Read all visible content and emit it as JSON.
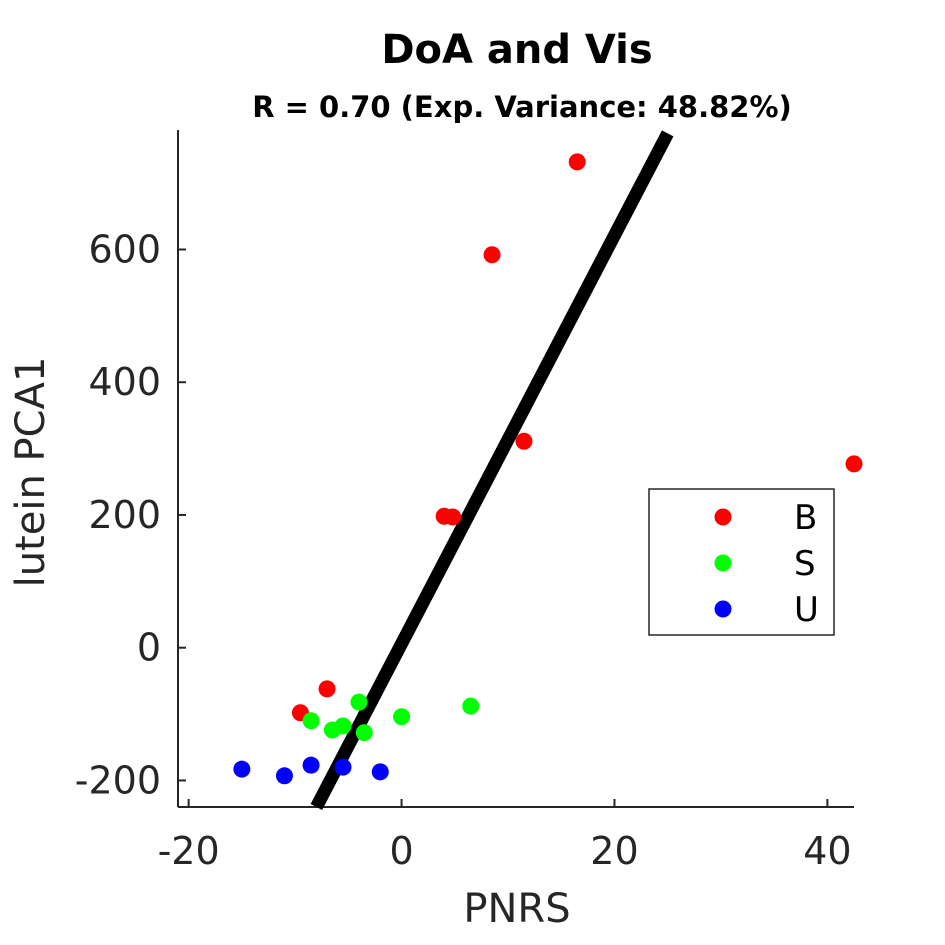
{
  "chart_data": {
    "type": "scatter",
    "title": "DoA and Vis",
    "subtitle": "R = 0.70 (Exp. Variance: 48.82%)",
    "xlabel": "PNRS",
    "ylabel": "lutein PCA1",
    "xlim": [
      -21,
      42.5
    ],
    "ylim": [
      -240,
      780
    ],
    "xticks": [
      -20,
      0,
      20,
      40
    ],
    "yticks": [
      -200,
      0,
      200,
      400,
      600
    ],
    "xtick_labels": [
      "-20",
      "0",
      "20",
      "40"
    ],
    "ytick_labels": [
      "-200",
      "0",
      "200",
      "400",
      "600"
    ],
    "grid": false,
    "legend_position": "right",
    "series": [
      {
        "name": "B",
        "color": "#ff0000",
        "points": [
          {
            "x": 16.5,
            "y": 732
          },
          {
            "x": 8.5,
            "y": 592
          },
          {
            "x": 11.5,
            "y": 311
          },
          {
            "x": 42.5,
            "y": 277
          },
          {
            "x": 4.0,
            "y": 198
          },
          {
            "x": 4.8,
            "y": 197
          },
          {
            "x": -7.0,
            "y": -62
          },
          {
            "x": -9.5,
            "y": -98
          }
        ]
      },
      {
        "name": "S",
        "color": "#00ff00",
        "points": [
          {
            "x": -4.0,
            "y": -82
          },
          {
            "x": 0.0,
            "y": -104
          },
          {
            "x": 6.5,
            "y": -88
          },
          {
            "x": -8.5,
            "y": -110
          },
          {
            "x": -6.5,
            "y": -124
          },
          {
            "x": -5.5,
            "y": -118
          },
          {
            "x": -3.5,
            "y": -128
          }
        ]
      },
      {
        "name": "U",
        "color": "#0000ff",
        "points": [
          {
            "x": -15.0,
            "y": -183
          },
          {
            "x": -11.0,
            "y": -193
          },
          {
            "x": -8.5,
            "y": -177
          },
          {
            "x": -5.5,
            "y": -180
          },
          {
            "x": -2.0,
            "y": -187
          }
        ]
      }
    ],
    "fit_line": {
      "color": "#000000",
      "points": [
        {
          "x": -8.0,
          "y": -240
        },
        {
          "x": 25.0,
          "y": 775
        }
      ]
    }
  }
}
